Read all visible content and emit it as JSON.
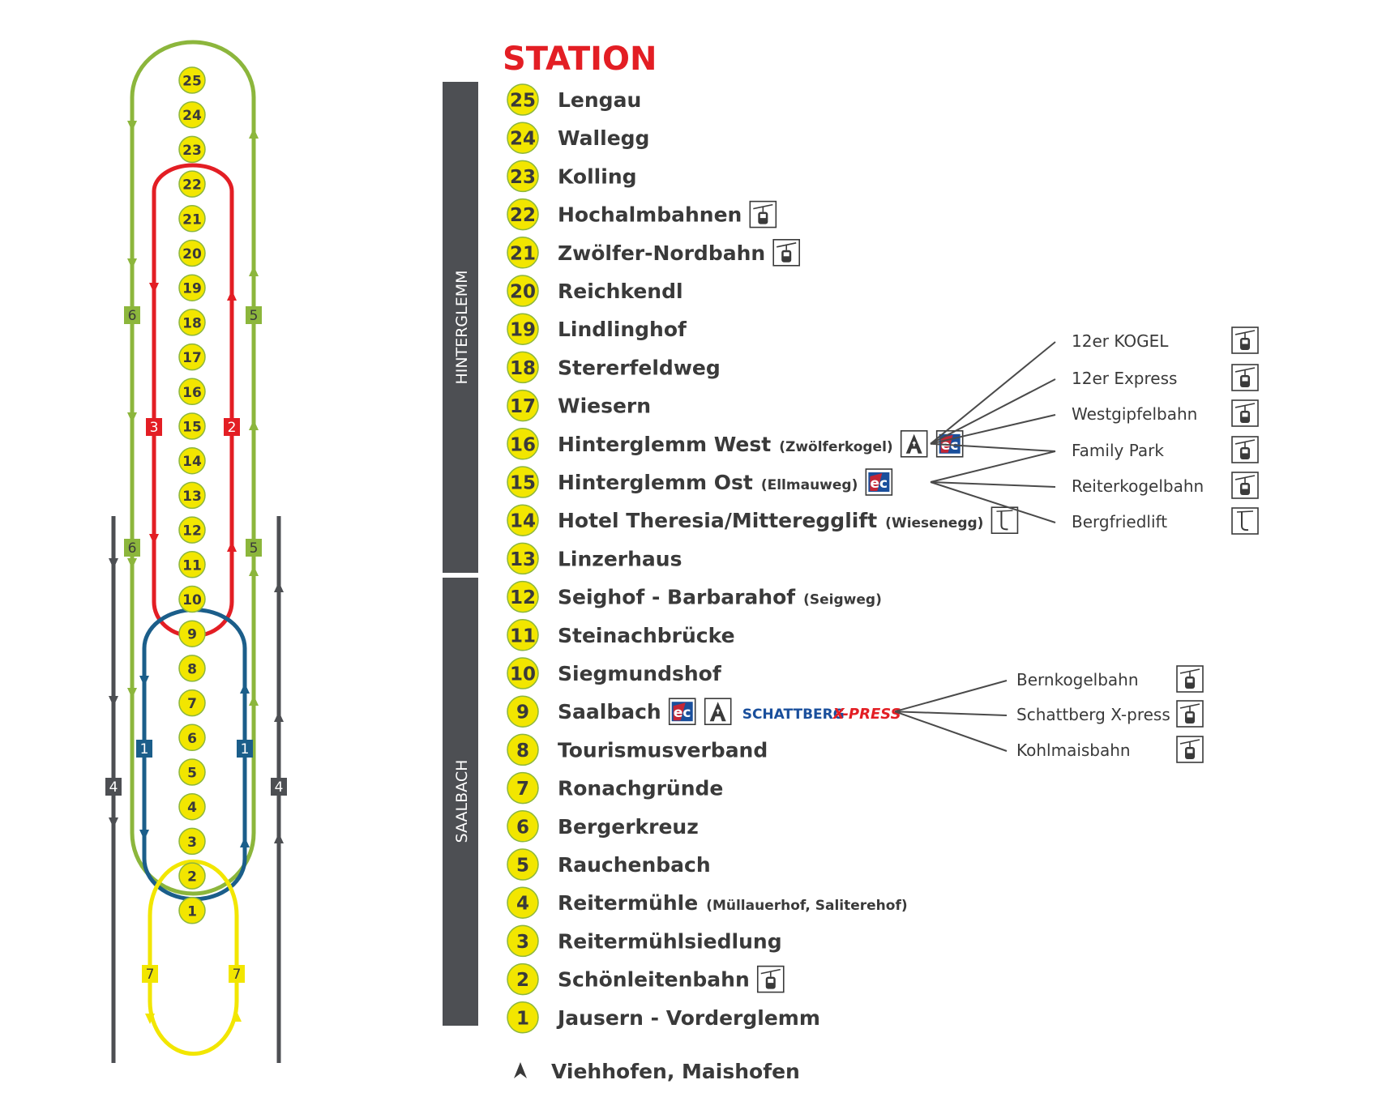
{
  "header": {
    "title": "STATION"
  },
  "zones": [
    {
      "label": "HINTERGLEMM"
    },
    {
      "label": "SAALBACH"
    }
  ],
  "stations": [
    {
      "num": "25",
      "name": "Lengau",
      "sub": "",
      "icons": []
    },
    {
      "num": "24",
      "name": "Wallegg",
      "sub": "",
      "icons": []
    },
    {
      "num": "23",
      "name": "Kolling",
      "sub": "",
      "icons": []
    },
    {
      "num": "22",
      "name": "Hochalmbahnen",
      "sub": "",
      "icons": [
        "gondola-icon"
      ]
    },
    {
      "num": "21",
      "name": "Zwölfer-Nordbahn",
      "sub": "",
      "icons": [
        "gondola-icon"
      ]
    },
    {
      "num": "20",
      "name": "Reichkendl",
      "sub": "",
      "icons": []
    },
    {
      "num": "19",
      "name": "Lindlinghof",
      "sub": "",
      "icons": []
    },
    {
      "num": "18",
      "name": "Stererfeldweg",
      "sub": "",
      "icons": []
    },
    {
      "num": "17",
      "name": "Wiesern",
      "sub": "",
      "icons": []
    },
    {
      "num": "16",
      "name": "Hinterglemm West",
      "sub": "(Zwölferkogel)",
      "icons": [
        "pharmacy-icon",
        "ec-atm-icon"
      ]
    },
    {
      "num": "15",
      "name": "Hinterglemm Ost",
      "sub": "(Ellmauweg)",
      "icons": [
        "ec-atm-icon"
      ]
    },
    {
      "num": "14",
      "name": "Hotel Theresia/Mitteregglift",
      "sub": "(Wiesenegg)",
      "icons": [
        "ski-lift-icon"
      ]
    },
    {
      "num": "13",
      "name": "Linzerhaus",
      "sub": "",
      "icons": []
    },
    {
      "num": "12",
      "name": "Seighof - Barbarahof",
      "sub": "(Seigweg)",
      "icons": []
    },
    {
      "num": "11",
      "name": "Steinachbrücke",
      "sub": "",
      "icons": []
    },
    {
      "num": "10",
      "name": "Siegmundshof",
      "sub": "",
      "icons": []
    },
    {
      "num": "9",
      "name": "Saalbach",
      "sub": "",
      "icons": [
        "ec-atm-icon",
        "pharmacy-icon",
        "schattberg-xpress-logo"
      ]
    },
    {
      "num": "8",
      "name": "Tourismusverband",
      "sub": "",
      "icons": []
    },
    {
      "num": "7",
      "name": "Ronachgründe",
      "sub": "",
      "icons": []
    },
    {
      "num": "6",
      "name": "Bergerkreuz",
      "sub": "",
      "icons": []
    },
    {
      "num": "5",
      "name": "Rauchenbach",
      "sub": "",
      "icons": []
    },
    {
      "num": "4",
      "name": "Reitermühle",
      "sub": "(Müllauerhof, Saliterehof)",
      "icons": []
    },
    {
      "num": "3",
      "name": "Reitermühlsiedlung",
      "sub": "",
      "icons": []
    },
    {
      "num": "2",
      "name": "Schönleitenbahn",
      "sub": "",
      "icons": [
        "gondola-icon"
      ]
    },
    {
      "num": "1",
      "name": "Jausern - Vorderglemm",
      "sub": "",
      "icons": []
    }
  ],
  "lifts_group_1": {
    "items": [
      {
        "name": "12er KOGEL",
        "icon": "gondola-icon"
      },
      {
        "name": "12er Express",
        "icon": "gondola-icon"
      },
      {
        "name": "Westgipfelbahn",
        "icon": "gondola-icon"
      },
      {
        "name": "Family Park",
        "icon": "gondola-icon"
      },
      {
        "name": "Reiterkogelbahn",
        "icon": "gondola-icon"
      },
      {
        "name": "Bergfriedlift",
        "icon": "ski-lift-icon"
      }
    ]
  },
  "lifts_group_2": {
    "items": [
      {
        "name": "Bernkogelbahn",
        "icon": "gondola-icon"
      },
      {
        "name": "Schattberg X-press",
        "icon": "gondola-icon"
      },
      {
        "name": "Kohlmaisbahn",
        "icon": "gondola-icon"
      }
    ]
  },
  "logo": {
    "word1": "SCHATTBERG",
    "word2": "X-PRESS"
  },
  "footer": {
    "text": "Viehhofen, Maishofen",
    "icon": "arrow-up-icon"
  },
  "routes": [
    {
      "number": "1",
      "color": "#1b5e8a"
    },
    {
      "number": "2",
      "color": "#e31e24"
    },
    {
      "number": "3",
      "color": "#e31e24"
    },
    {
      "number": "4",
      "color": "#4d4f53"
    },
    {
      "number": "5",
      "color": "#8cb63c"
    },
    {
      "number": "6",
      "color": "#8cb63c"
    },
    {
      "number": "7",
      "color": "#f2e600"
    }
  ],
  "colors": {
    "title_red": "#e31e24",
    "station_yellow": "#f2e600",
    "station_ring": "#8cb63c",
    "zone_bar": "#4d4f53",
    "text": "#3a3a3a",
    "logo_blue": "#1a4f9c"
  }
}
